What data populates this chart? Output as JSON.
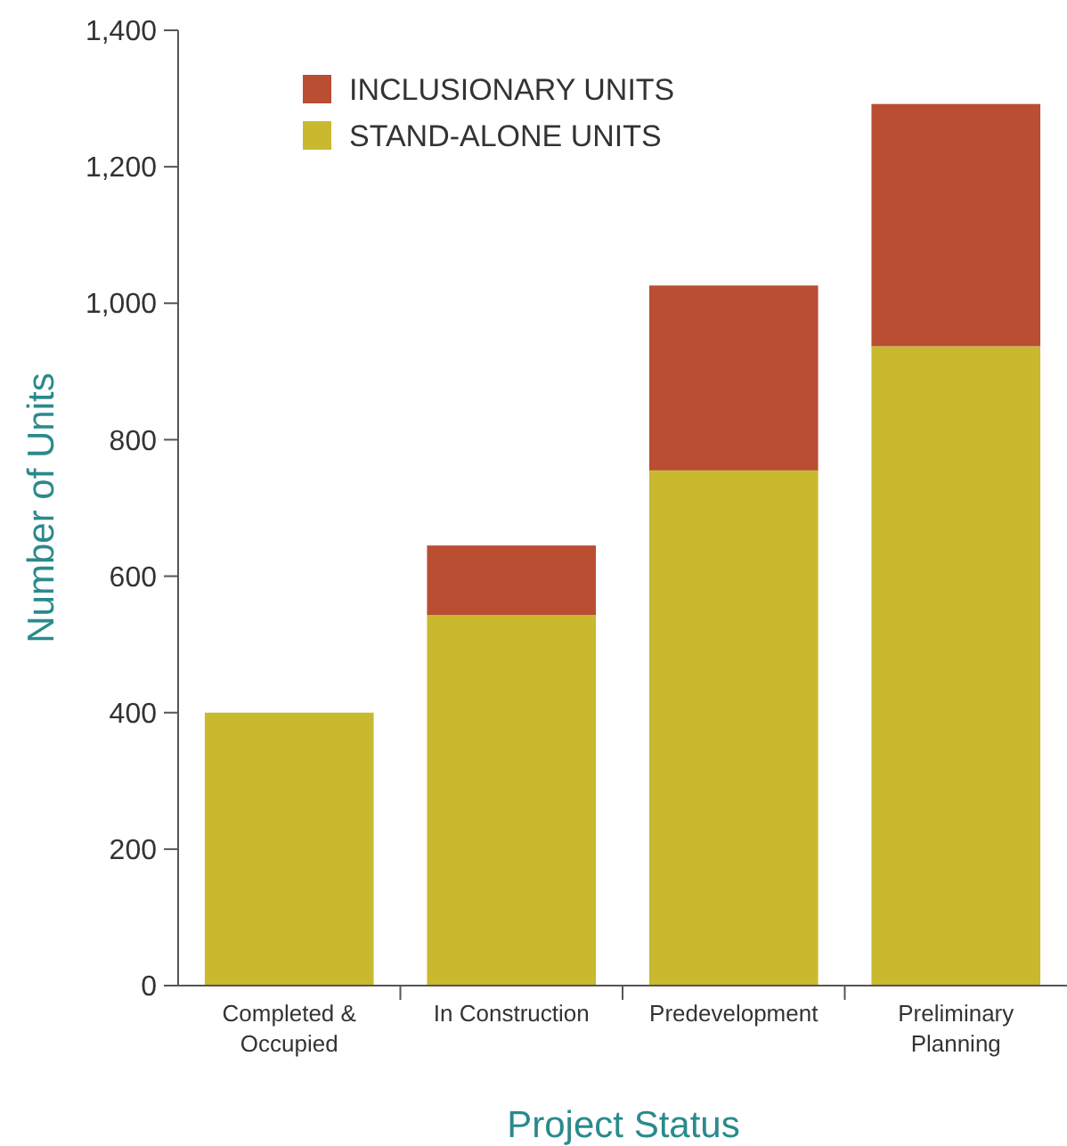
{
  "chart_data": {
    "type": "bar",
    "stacked": true,
    "xlabel": "Project Status",
    "ylabel": "Number of Units",
    "categories": [
      "Completed & Occupied",
      "In Construction",
      "Predevelopment",
      "Preliminary Planning"
    ],
    "series": [
      {
        "name": "STAND-ALONE UNITS",
        "color": "#c9b92e",
        "values": [
          400,
          543,
          755,
          937
        ]
      },
      {
        "name": "INCLUSIONARY UNITS",
        "color": "#b94e33",
        "values": [
          0,
          102,
          271,
          355
        ]
      }
    ],
    "ylim": [
      0,
      1400
    ],
    "yticks": [
      {
        "value": 0,
        "label": "0"
      },
      {
        "value": 200,
        "label": "200"
      },
      {
        "value": 400,
        "label": "400"
      },
      {
        "value": 600,
        "label": "600"
      },
      {
        "value": 800,
        "label": "800"
      },
      {
        "value": 1000,
        "label": "1,000"
      },
      {
        "value": 1200,
        "label": "1,200"
      },
      {
        "value": 1400,
        "label": "1,400"
      }
    ],
    "legend": "top left",
    "grid": false
  }
}
